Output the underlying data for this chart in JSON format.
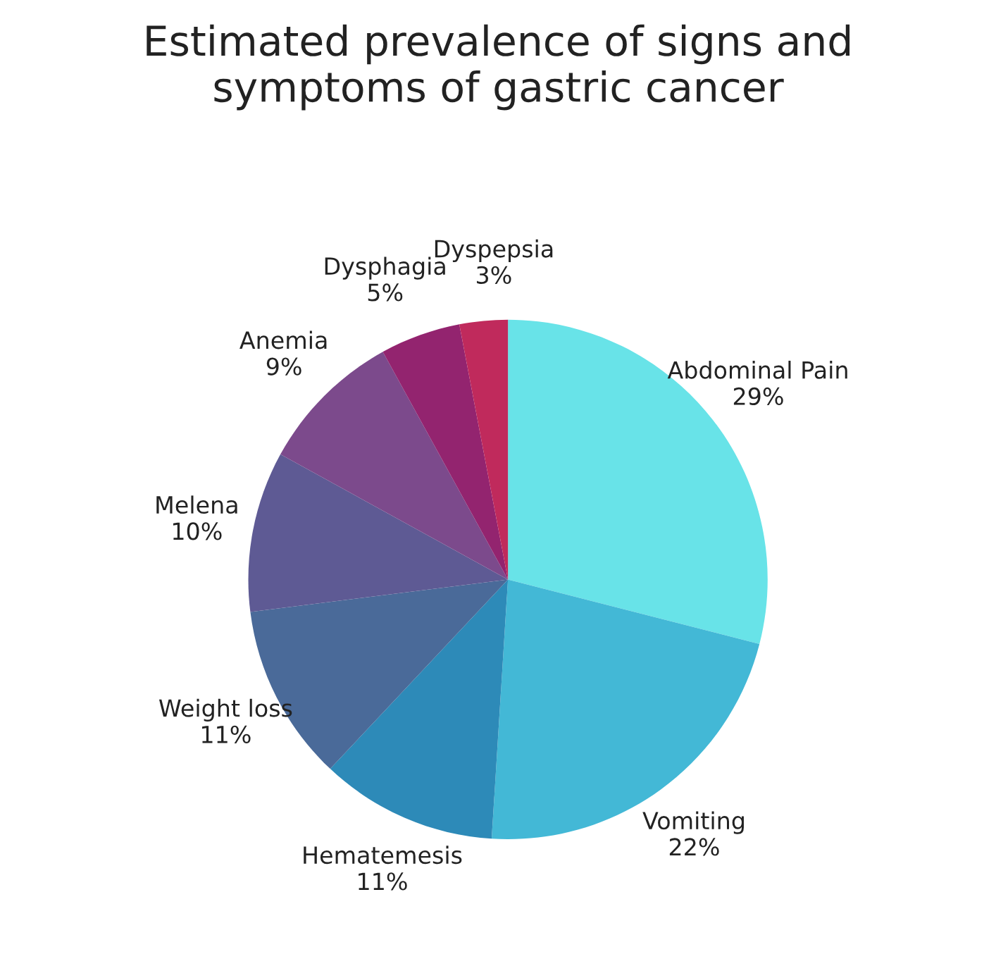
{
  "chart_data": {
    "type": "pie",
    "title": "Estimated prevalence of signs and\nsymptoms of gastric cancer",
    "categories": [
      "Abdominal Pain",
      "Vomiting",
      "Hematemesis",
      "Weight loss",
      "Melena",
      "Anemia",
      "Dysphagia",
      "Dyspepsia"
    ],
    "values": [
      29,
      22,
      11,
      11,
      10,
      9,
      5,
      3
    ],
    "value_labels": [
      "29%",
      "22%",
      "11%",
      "11%",
      "10%",
      "9%",
      "5%",
      "3%"
    ],
    "colors": [
      "#68e3e8",
      "#43b8d6",
      "#2d8ab8",
      "#4a6a99",
      "#5e5a94",
      "#7c4a8c",
      "#93246f",
      "#c02a5c"
    ]
  }
}
